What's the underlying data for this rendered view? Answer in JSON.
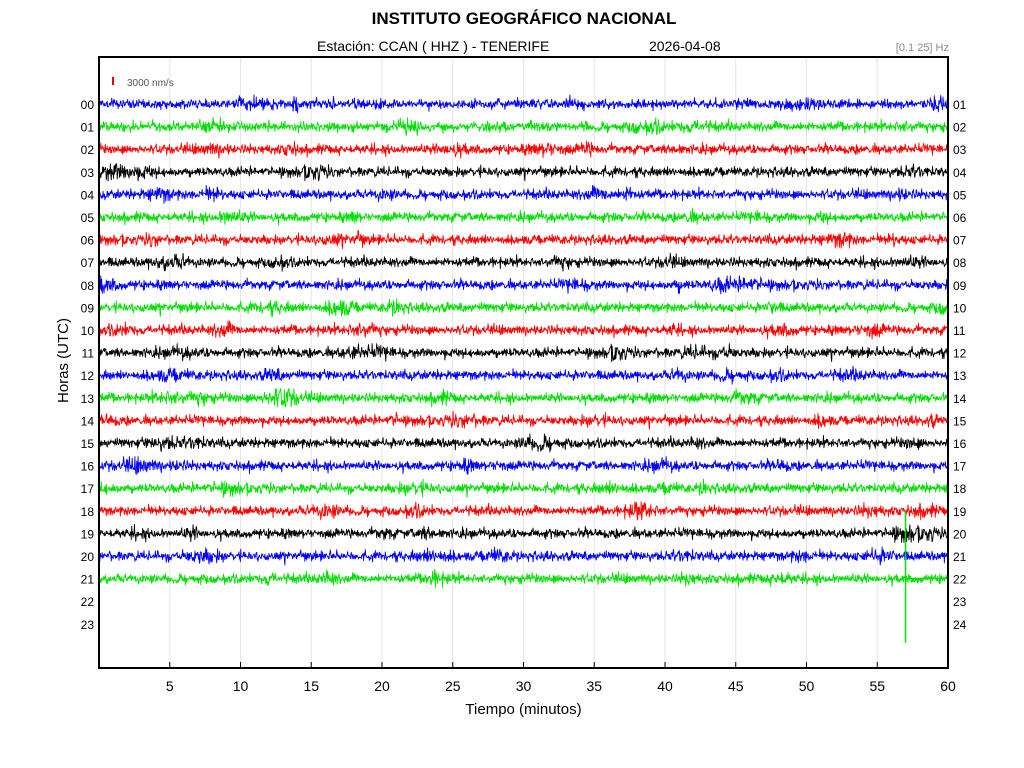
{
  "header": {
    "title": "INSTITUTO GEOGRÁFICO NACIONAL",
    "station": "Estación:  CCAN ( HHZ ) - TENERIFE",
    "date": "2026-04-08",
    "frequency_band": "[0.1 25] Hz"
  },
  "chart_data": {
    "type": "line",
    "title": "INSTITUTO GEOGRÁFICO NACIONAL",
    "xlabel": "Tiempo (minutos)",
    "ylabel": "Horas (UTC)",
    "xlim": [
      0,
      60
    ],
    "x_ticks": [
      5,
      10,
      15,
      20,
      25,
      30,
      35,
      40,
      45,
      50,
      55,
      60
    ],
    "y_ticks_left": [
      "00",
      "01",
      "02",
      "03",
      "04",
      "05",
      "06",
      "07",
      "08",
      "09",
      "10",
      "11",
      "12",
      "13",
      "14",
      "15",
      "16",
      "17",
      "18",
      "19",
      "20",
      "21",
      "22",
      "23"
    ],
    "y_ticks_right": [
      "01",
      "02",
      "03",
      "04",
      "05",
      "06",
      "07",
      "08",
      "09",
      "10",
      "11",
      "12",
      "13",
      "14",
      "15",
      "16",
      "17",
      "18",
      "19",
      "20",
      "21",
      "22",
      "23",
      "24"
    ],
    "scale_label": "3000 nm/s",
    "scale_color": "#e00000",
    "grid": "vertical",
    "color_cycle": [
      "#0000ff",
      "#00e000",
      "#ff0000",
      "#000000"
    ],
    "traces": [
      {
        "hour": "00",
        "color": "#0000ff",
        "end_minute": 60
      },
      {
        "hour": "01",
        "color": "#00e000",
        "end_minute": 60
      },
      {
        "hour": "02",
        "color": "#ff0000",
        "end_minute": 60
      },
      {
        "hour": "03",
        "color": "#000000",
        "end_minute": 60
      },
      {
        "hour": "04",
        "color": "#0000ff",
        "end_minute": 60
      },
      {
        "hour": "05",
        "color": "#00e000",
        "end_minute": 60
      },
      {
        "hour": "06",
        "color": "#ff0000",
        "end_minute": 60
      },
      {
        "hour": "07",
        "color": "#000000",
        "end_minute": 60
      },
      {
        "hour": "08",
        "color": "#0000ff",
        "end_minute": 60
      },
      {
        "hour": "09",
        "color": "#00e000",
        "end_minute": 60
      },
      {
        "hour": "10",
        "color": "#ff0000",
        "end_minute": 60
      },
      {
        "hour": "11",
        "color": "#000000",
        "end_minute": 60
      },
      {
        "hour": "12",
        "color": "#0000ff",
        "end_minute": 60
      },
      {
        "hour": "13",
        "color": "#00e000",
        "end_minute": 60
      },
      {
        "hour": "14",
        "color": "#ff0000",
        "end_minute": 60
      },
      {
        "hour": "15",
        "color": "#000000",
        "end_minute": 60
      },
      {
        "hour": "16",
        "color": "#0000ff",
        "end_minute": 60
      },
      {
        "hour": "17",
        "color": "#00e000",
        "end_minute": 60
      },
      {
        "hour": "18",
        "color": "#ff0000",
        "end_minute": 60
      },
      {
        "hour": "19",
        "color": "#000000",
        "end_minute": 60
      },
      {
        "hour": "20",
        "color": "#0000ff",
        "end_minute": 60
      },
      {
        "hour": "21",
        "color": "#00e000",
        "end_minute": 60
      }
    ],
    "current_time_marker": {
      "hour": "21",
      "minute": 57,
      "color": "#00e000"
    }
  }
}
